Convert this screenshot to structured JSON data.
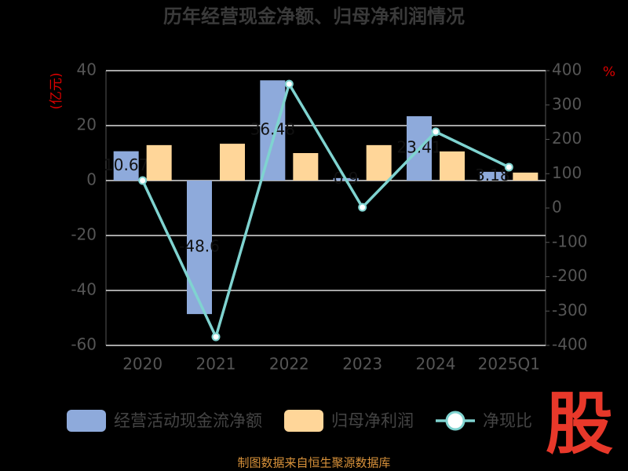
{
  "chart_data": {
    "type": "bar-line",
    "title": "历年经营现金净额、归母净利润情况",
    "y_label": "(亿元)",
    "y2_label": "%",
    "categories": [
      "2020",
      "2021",
      "2022",
      "2023",
      "2024",
      "2025Q1"
    ],
    "series": [
      {
        "name": "经营活动现金流净额",
        "type": "bar",
        "color": "#8eaadb",
        "values": [
          10.67,
          -48.6,
          36.48,
          0.9,
          23.41,
          3.18
        ]
      },
      {
        "name": "归母净利润",
        "type": "bar",
        "color": "#ffd699",
        "values": [
          12.9,
          13.4,
          10.0,
          12.9,
          10.6,
          2.9
        ]
      },
      {
        "name": "净现比",
        "type": "line",
        "axis": "y2",
        "color": "#7fd3d0",
        "values": [
          80,
          -375,
          361,
          2,
          222,
          119
        ]
      }
    ],
    "ylim": [
      -60,
      40
    ],
    "yticks": [
      -60,
      -40,
      -20,
      0,
      20,
      40
    ],
    "y2lim": [
      -400,
      400
    ],
    "y2ticks": [
      -400,
      -300,
      -200,
      -100,
      0,
      100,
      200,
      300,
      400
    ],
    "grid": true,
    "source": "制图数据来自恒生聚源数据库",
    "logo": "股"
  }
}
